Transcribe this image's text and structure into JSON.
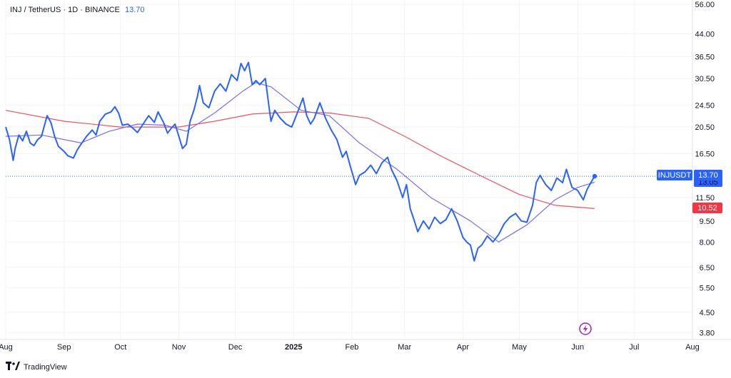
{
  "header": {
    "symbol": "INJ",
    "separator": "/",
    "quote": "TetherUS",
    "interval": "1D",
    "exchange": "BINANCE",
    "last_value": "13.70"
  },
  "badges": {
    "symbol_label": "INJUSDT",
    "price": "13.70",
    "ma_fast": "13.05",
    "ma_slow": "10.52"
  },
  "footer": {
    "brand": "TradingView",
    "logo_icon": "tradingview-logo-icon"
  },
  "colors": {
    "price": "#2962ff",
    "ma_fast": "#7b6cf0",
    "ma_slow": "#f0525c",
    "badge_price": "#2962ff",
    "badge_slow": "#f23645",
    "grid": "#f0f3fa"
  },
  "chart_data": {
    "type": "line",
    "yscale": "log",
    "y_ticks": [
      "56.00",
      "44.00",
      "36.50",
      "30.50",
      "24.50",
      "20.50",
      "16.50",
      "11.50",
      "9.50",
      "8.00",
      "6.50",
      "5.50",
      "4.50",
      "3.80"
    ],
    "x_ticks": [
      "Aug",
      "Sep",
      "Oct",
      "Nov",
      "Dec",
      "2025",
      "Feb",
      "Mar",
      "Apr",
      "May",
      "Jun",
      "Jul",
      "Aug"
    ],
    "x_range": [
      "2024-08-01",
      "2025-08-01"
    ],
    "ylim": [
      3.6,
      58
    ],
    "series": [
      {
        "key": "price",
        "points": [
          [
            "2024-08-01",
            20.5
          ],
          [
            "2024-08-03",
            18.5
          ],
          [
            "2024-08-05",
            15.6
          ],
          [
            "2024-08-06",
            17.2
          ],
          [
            "2024-08-08",
            19.2
          ],
          [
            "2024-08-10",
            18.3
          ],
          [
            "2024-08-12",
            19.8
          ],
          [
            "2024-08-14",
            18.0
          ],
          [
            "2024-08-16",
            17.6
          ],
          [
            "2024-08-18",
            18.5
          ],
          [
            "2024-08-20",
            19.0
          ],
          [
            "2024-08-23",
            22.5
          ],
          [
            "2024-08-25",
            21.3
          ],
          [
            "2024-08-27",
            19.0
          ],
          [
            "2024-08-29",
            17.5
          ],
          [
            "2024-09-01",
            16.8
          ],
          [
            "2024-09-03",
            16.2
          ],
          [
            "2024-09-06",
            15.9
          ],
          [
            "2024-09-08",
            17.0
          ],
          [
            "2024-09-10",
            17.8
          ],
          [
            "2024-09-13",
            19.0
          ],
          [
            "2024-09-16",
            20.0
          ],
          [
            "2024-09-18",
            19.2
          ],
          [
            "2024-09-20",
            21.5
          ],
          [
            "2024-09-23",
            22.8
          ],
          [
            "2024-09-26",
            23.2
          ],
          [
            "2024-09-28",
            24.2
          ],
          [
            "2024-09-30",
            23.0
          ],
          [
            "2024-10-02",
            20.8
          ],
          [
            "2024-10-05",
            21.0
          ],
          [
            "2024-10-08",
            20.2
          ],
          [
            "2024-10-10",
            19.6
          ],
          [
            "2024-10-13",
            21.0
          ],
          [
            "2024-10-16",
            22.5
          ],
          [
            "2024-10-19",
            21.3
          ],
          [
            "2024-10-21",
            23.2
          ],
          [
            "2024-10-24",
            21.2
          ],
          [
            "2024-10-26",
            19.5
          ],
          [
            "2024-10-28",
            20.3
          ],
          [
            "2024-10-30",
            21.0
          ],
          [
            "2024-11-01",
            19.0
          ],
          [
            "2024-11-03",
            17.2
          ],
          [
            "2024-11-05",
            17.8
          ],
          [
            "2024-11-07",
            21.5
          ],
          [
            "2024-11-09",
            23.5
          ],
          [
            "2024-11-11",
            26.5
          ],
          [
            "2024-11-12",
            28.8
          ],
          [
            "2024-11-14",
            25.0
          ],
          [
            "2024-11-17",
            24.0
          ],
          [
            "2024-11-20",
            27.5
          ],
          [
            "2024-11-23",
            29.2
          ],
          [
            "2024-11-26",
            27.5
          ],
          [
            "2024-11-29",
            31.5
          ],
          [
            "2024-12-02",
            30.0
          ],
          [
            "2024-12-04",
            34.5
          ],
          [
            "2024-12-06",
            32.5
          ],
          [
            "2024-12-08",
            34.8
          ],
          [
            "2024-12-10",
            29.0
          ],
          [
            "2024-12-12",
            30.0
          ],
          [
            "2024-12-14",
            29.0
          ],
          [
            "2024-12-17",
            30.5
          ],
          [
            "2024-12-19",
            24.0
          ],
          [
            "2024-12-20",
            21.5
          ],
          [
            "2024-12-22",
            23.5
          ],
          [
            "2024-12-25",
            22.0
          ],
          [
            "2024-12-28",
            21.0
          ],
          [
            "2024-12-31",
            20.5
          ],
          [
            "2025-01-03",
            23.0
          ],
          [
            "2025-01-06",
            26.0
          ],
          [
            "2025-01-08",
            22.5
          ],
          [
            "2025-01-10",
            21.0
          ],
          [
            "2025-01-12",
            22.0
          ],
          [
            "2025-01-15",
            25.0
          ],
          [
            "2025-01-18",
            22.0
          ],
          [
            "2025-01-21",
            20.0
          ],
          [
            "2025-01-24",
            18.5
          ],
          [
            "2025-01-27",
            16.0
          ],
          [
            "2025-01-29",
            16.8
          ],
          [
            "2025-01-31",
            15.0
          ],
          [
            "2025-02-03",
            12.8
          ],
          [
            "2025-02-05",
            13.8
          ],
          [
            "2025-02-08",
            14.2
          ],
          [
            "2025-02-11",
            15.0
          ],
          [
            "2025-02-14",
            14.0
          ],
          [
            "2025-02-17",
            15.3
          ],
          [
            "2025-02-20",
            16.0
          ],
          [
            "2025-02-22",
            14.5
          ],
          [
            "2025-02-25",
            13.2
          ],
          [
            "2025-02-28",
            11.5
          ],
          [
            "2025-03-02",
            12.8
          ],
          [
            "2025-03-04",
            10.5
          ],
          [
            "2025-03-06",
            9.6
          ],
          [
            "2025-03-08",
            8.7
          ],
          [
            "2025-03-11",
            9.5
          ],
          [
            "2025-03-14",
            8.9
          ],
          [
            "2025-03-17",
            9.8
          ],
          [
            "2025-03-20",
            9.3
          ],
          [
            "2025-03-23",
            9.6
          ],
          [
            "2025-03-26",
            10.5
          ],
          [
            "2025-03-29",
            9.5
          ],
          [
            "2025-04-01",
            8.3
          ],
          [
            "2025-04-03",
            8.0
          ],
          [
            "2025-04-05",
            7.8
          ],
          [
            "2025-04-07",
            6.85
          ],
          [
            "2025-04-09",
            7.6
          ],
          [
            "2025-04-11",
            7.8
          ],
          [
            "2025-04-14",
            8.4
          ],
          [
            "2025-04-17",
            8.0
          ],
          [
            "2025-04-20",
            8.5
          ],
          [
            "2025-04-23",
            9.3
          ],
          [
            "2025-04-26",
            9.8
          ],
          [
            "2025-04-29",
            10.1
          ],
          [
            "2025-05-02",
            9.5
          ],
          [
            "2025-05-05",
            9.4
          ],
          [
            "2025-05-08",
            10.8
          ],
          [
            "2025-05-10",
            13.0
          ],
          [
            "2025-05-12",
            13.8
          ],
          [
            "2025-05-15",
            12.8
          ],
          [
            "2025-05-18",
            12.2
          ],
          [
            "2025-05-21",
            13.5
          ],
          [
            "2025-05-24",
            13.0
          ],
          [
            "2025-05-26",
            14.5
          ],
          [
            "2025-05-29",
            12.5
          ],
          [
            "2025-06-01",
            12.2
          ],
          [
            "2025-06-04",
            11.3
          ],
          [
            "2025-06-06",
            12.3
          ],
          [
            "2025-06-08",
            13.0
          ],
          [
            "2025-06-10",
            13.7
          ]
        ]
      },
      {
        "key": "ma_fast",
        "points": [
          [
            "2024-08-01",
            19.0
          ],
          [
            "2024-08-20",
            19.2
          ],
          [
            "2024-09-10",
            18.0
          ],
          [
            "2024-09-25",
            19.8
          ],
          [
            "2024-10-10",
            21.0
          ],
          [
            "2024-10-25",
            20.8
          ],
          [
            "2024-11-05",
            19.8
          ],
          [
            "2024-11-20",
            23.0
          ],
          [
            "2024-12-05",
            27.5
          ],
          [
            "2024-12-12",
            29.5
          ],
          [
            "2024-12-20",
            28.5
          ],
          [
            "2025-01-05",
            23.5
          ],
          [
            "2025-01-20",
            22.5
          ],
          [
            "2025-02-05",
            18.0
          ],
          [
            "2025-02-25",
            14.5
          ],
          [
            "2025-03-15",
            11.5
          ],
          [
            "2025-04-05",
            9.5
          ],
          [
            "2025-04-20",
            8.0
          ],
          [
            "2025-05-05",
            9.2
          ],
          [
            "2025-05-20",
            11.3
          ],
          [
            "2025-06-01",
            12.5
          ],
          [
            "2025-06-10",
            13.05
          ]
        ]
      },
      {
        "key": "ma_slow",
        "points": [
          [
            "2024-08-01",
            23.5
          ],
          [
            "2024-09-01",
            21.5
          ],
          [
            "2024-10-01",
            20.5
          ],
          [
            "2024-11-01",
            20.5
          ],
          [
            "2024-11-20",
            21.5
          ],
          [
            "2024-12-10",
            22.8
          ],
          [
            "2025-01-01",
            23.2
          ],
          [
            "2025-01-20",
            23.0
          ],
          [
            "2025-02-10",
            22.0
          ],
          [
            "2025-03-01",
            19.0
          ],
          [
            "2025-03-20",
            16.2
          ],
          [
            "2025-04-10",
            13.8
          ],
          [
            "2025-05-01",
            11.8
          ],
          [
            "2025-05-20",
            10.8
          ],
          [
            "2025-06-10",
            10.52
          ]
        ]
      }
    ]
  }
}
